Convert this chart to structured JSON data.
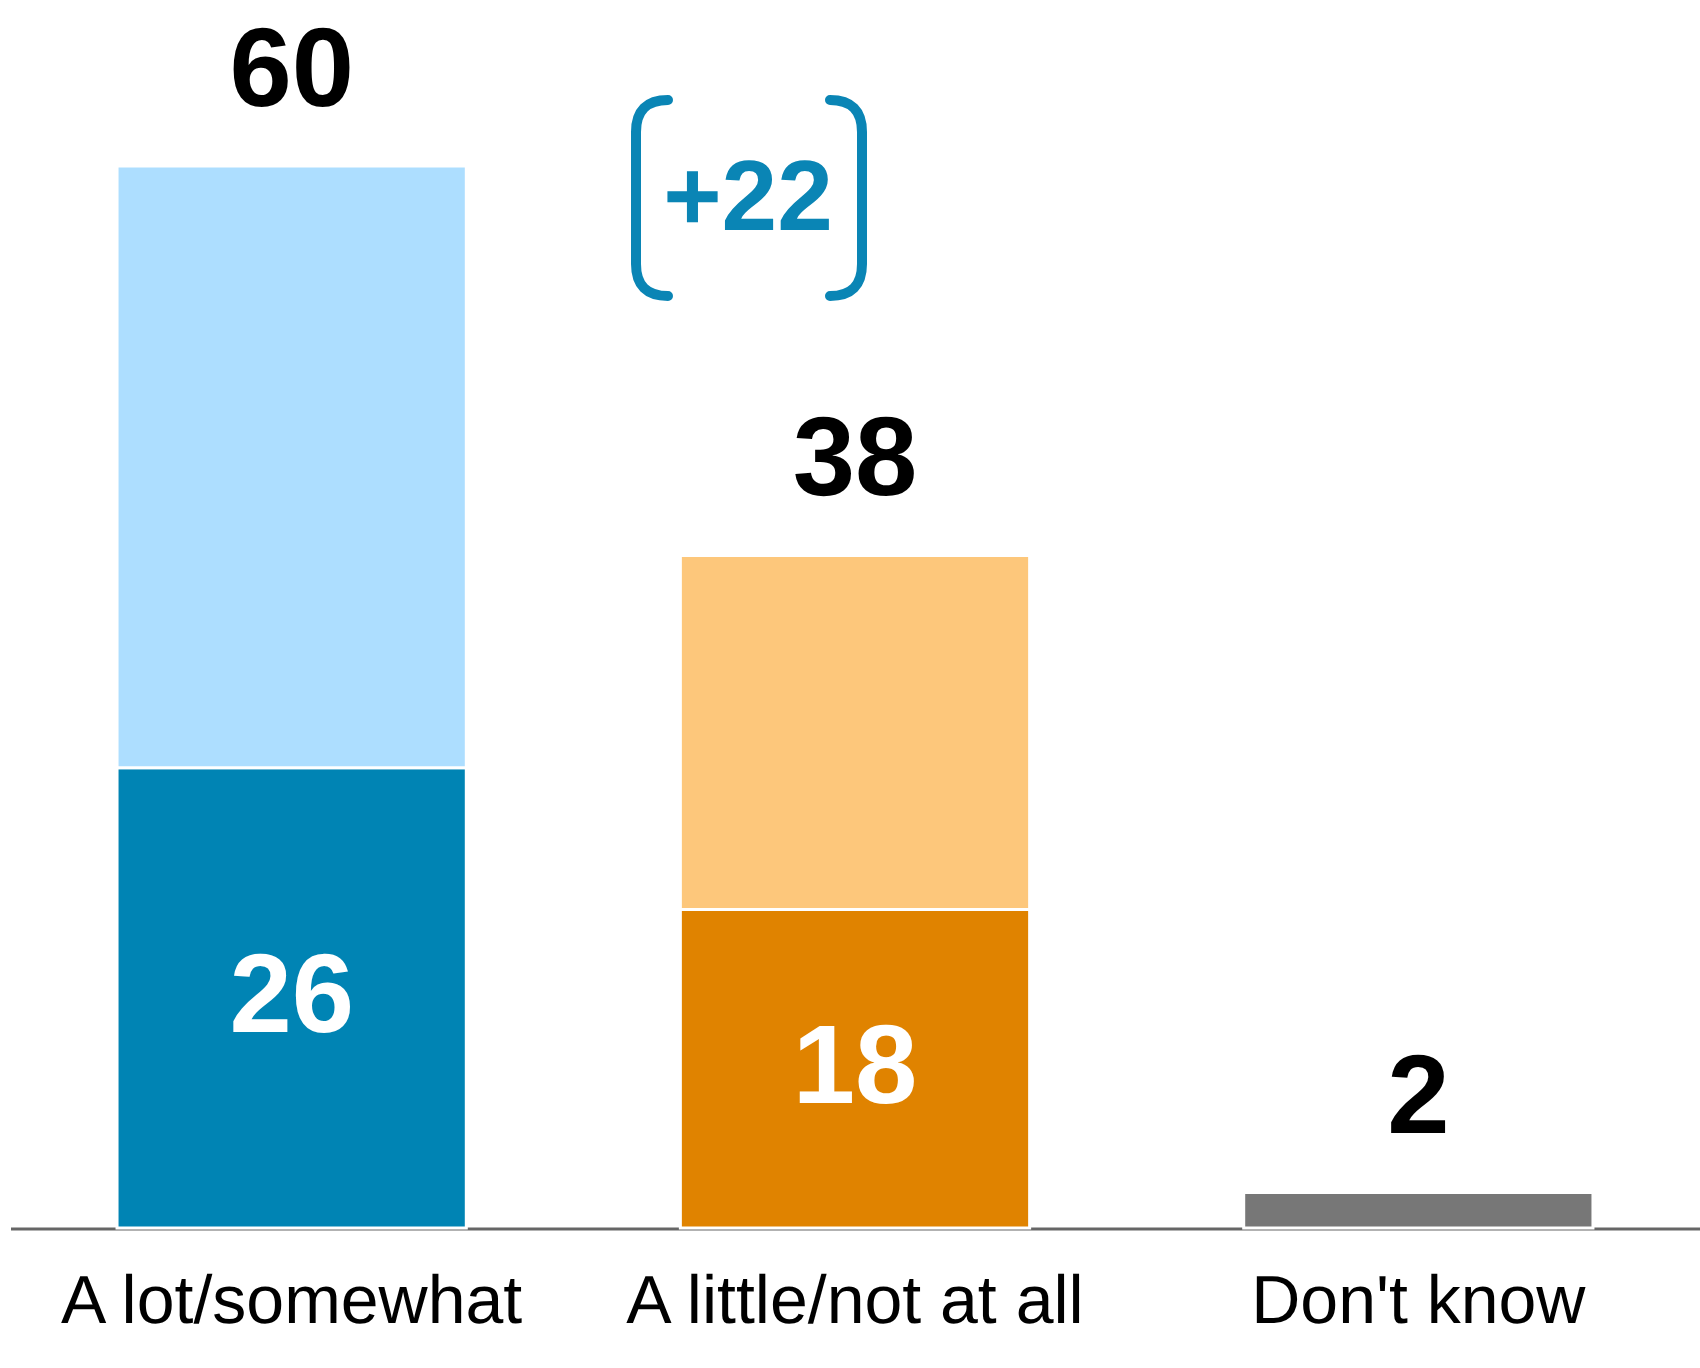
{
  "chart_data": {
    "type": "bar",
    "categories": [
      "A lot/somewhat",
      "A little/not at all",
      "Don't know"
    ],
    "stacked": true,
    "ylim": [
      0,
      60
    ],
    "tick_labels": "x",
    "series": [
      {
        "colors": [
          "#0084b4",
          "#e08300",
          "#777777"
        ],
        "values": [
          26,
          18,
          2
        ],
        "value_labels": [
          "26",
          "18",
          null
        ]
      },
      {
        "colors": [
          "#addeff",
          "#fdc77b",
          null
        ],
        "values": [
          34,
          20,
          null
        ]
      }
    ],
    "totals": [
      "60",
      "38",
      "2"
    ],
    "annotations": [
      "+22"
    ]
  }
}
